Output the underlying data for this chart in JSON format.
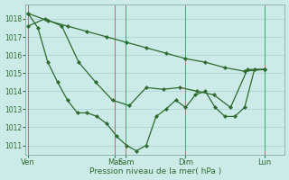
{
  "background_color": "#cceae8",
  "grid_color": "#aad4d0",
  "line_color": "#2d6b2d",
  "xlabel": "Pression niveau de la mer( hPa )",
  "ylim": [
    1010.5,
    1018.8
  ],
  "yticks": [
    1011,
    1012,
    1013,
    1014,
    1015,
    1016,
    1017,
    1018
  ],
  "xtick_labels": [
    "Ven",
    "Mar",
    "Sam",
    "Dim",
    "Lun"
  ],
  "sep_color": "#c08080",
  "line1_y": [
    1018.3,
    1017.9,
    1017.6,
    1017.3,
    1017.0,
    1016.7,
    1016.4,
    1016.1,
    1015.8,
    1015.6,
    1015.3,
    1015.1,
    1015.2
  ],
  "line2_y": [
    1017.6,
    1018.0,
    1017.6,
    1015.6,
    1014.5,
    1013.5,
    1013.2,
    1014.2,
    1014.1,
    1014.2,
    1014.0,
    1013.8,
    1013.1,
    1015.2,
    1015.2
  ],
  "line3_y": [
    1018.3,
    1017.5,
    1015.6,
    1014.5,
    1013.5,
    1012.8,
    1012.8,
    1012.6,
    1012.2,
    1011.5,
    1011.0,
    1010.7,
    1011.0,
    1012.6,
    1013.0,
    1013.5,
    1013.1,
    1013.8,
    1014.0,
    1013.1,
    1012.6,
    1012.6,
    1013.1,
    1015.2,
    1015.2
  ]
}
